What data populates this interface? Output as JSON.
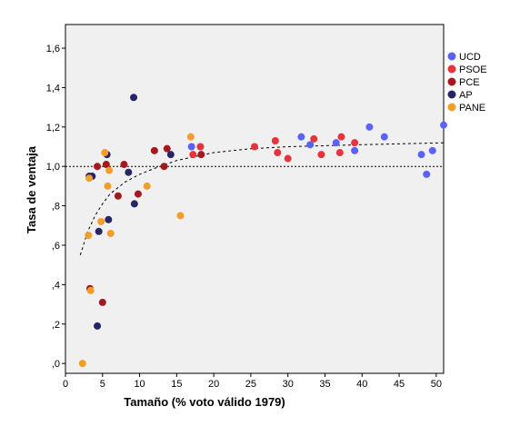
{
  "chart_data": {
    "type": "scatter",
    "xlabel": "Tamaño (% voto válido 1979)",
    "ylabel": "Tasa de ventaja",
    "xlim": [
      0,
      51
    ],
    "ylim": [
      -0.05,
      1.72
    ],
    "x_ticks": [
      0,
      5,
      10,
      15,
      20,
      25,
      30,
      35,
      40,
      45,
      50
    ],
    "x_tick_labels": [
      "0",
      "5",
      "10",
      "15",
      "20",
      "25",
      "30",
      "35",
      "40",
      "45",
      "50"
    ],
    "y_ticks": [
      0,
      0.2,
      0.4,
      0.6,
      0.8,
      1.0,
      1.2,
      1.4,
      1.6
    ],
    "y_tick_labels": [
      ",0",
      ",2",
      ",4",
      ",6",
      ",8",
      "1,0",
      "1,2",
      "1,4",
      "1,6"
    ],
    "grid": false,
    "legend_position": "right",
    "plot_background": "#f0f0f0",
    "reference_line": {
      "y": 1.0,
      "style": "dotted"
    },
    "fit_curve": {
      "style": "dashed",
      "points": [
        [
          2,
          0.55
        ],
        [
          3,
          0.67
        ],
        [
          4,
          0.75
        ],
        [
          5,
          0.81
        ],
        [
          6,
          0.86
        ],
        [
          8,
          0.92
        ],
        [
          10,
          0.96
        ],
        [
          12,
          0.99
        ],
        [
          15,
          1.03
        ],
        [
          20,
          1.07
        ],
        [
          25,
          1.09
        ],
        [
          30,
          1.1
        ],
        [
          40,
          1.11
        ],
        [
          51,
          1.12
        ]
      ]
    },
    "series": [
      {
        "name": "UCD",
        "color": "#5b62f5",
        "x": [
          17,
          31.8,
          33,
          36.5,
          39,
          41,
          43,
          48,
          48.7,
          49.5,
          51
        ],
        "y": [
          1.1,
          1.15,
          1.11,
          1.12,
          1.08,
          1.2,
          1.15,
          1.06,
          0.96,
          1.08,
          1.21
        ]
      },
      {
        "name": "PSOE",
        "color": "#e8333c",
        "x": [
          17.2,
          18.2,
          25.5,
          28.3,
          28.6,
          30,
          33.5,
          34.5,
          37,
          37.2,
          39
        ],
        "y": [
          1.06,
          1.1,
          1.1,
          1.13,
          1.07,
          1.04,
          1.14,
          1.06,
          1.07,
          1.15,
          1.12
        ]
      },
      {
        "name": "PCE",
        "color": "#a51820",
        "x": [
          3.3,
          4.3,
          5,
          5.5,
          7.1,
          7.9,
          9.8,
          12,
          13.3,
          13.7,
          18.3
        ],
        "y": [
          0.38,
          1.0,
          0.31,
          1.01,
          0.85,
          1.01,
          0.86,
          1.08,
          1.0,
          1.09,
          1.06
        ]
      },
      {
        "name": "AP",
        "color": "#262666",
        "x": [
          3.2,
          3.6,
          4.3,
          4.5,
          5.6,
          5.8,
          8.5,
          9.2,
          9.3,
          14.2
        ],
        "y": [
          0.95,
          0.95,
          0.19,
          0.67,
          1.06,
          0.73,
          0.97,
          1.35,
          0.81,
          1.06
        ]
      },
      {
        "name": "PANE",
        "color": "#f39d2a",
        "x": [
          2.3,
          3.1,
          3.2,
          3.4,
          4.8,
          5.3,
          5.7,
          5.9,
          6.1,
          11,
          15.5,
          16.9
        ],
        "y": [
          0.0,
          0.65,
          0.94,
          0.37,
          0.72,
          1.07,
          0.9,
          0.98,
          0.66,
          0.9,
          0.75,
          1.15
        ]
      }
    ]
  }
}
